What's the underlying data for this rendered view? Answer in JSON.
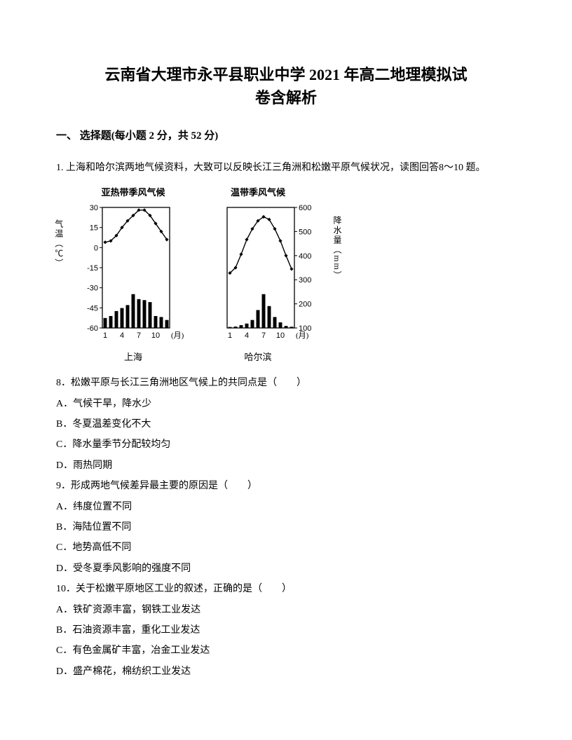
{
  "title_line1": "云南省大理市永平县职业中学 2021 年高二地理模拟试",
  "title_line2": "卷含解析",
  "section1": "一、 选择题(每小题 2 分，共 52 分)",
  "intro": "1. 上海和哈尔滨两地气候资料，大致可以反映长江三角洲和松嫩平原气候状况，读图回答8～10 题。",
  "chart1": {
    "title": "亚热带季风气候",
    "caption": "上海",
    "y_left_label": "气温（℃）",
    "temp_ticks": [
      30,
      15,
      0,
      -15,
      -30,
      -45,
      -60
    ],
    "x_ticks": [
      1,
      4,
      7,
      10
    ],
    "x_unit": "(月)",
    "temp_values": [
      4,
      5,
      9,
      15,
      20,
      24,
      28,
      28,
      24,
      18,
      12,
      6
    ],
    "precip_max": 200,
    "precip_values": [
      50,
      60,
      85,
      100,
      115,
      170,
      145,
      140,
      130,
      60,
      55,
      40
    ],
    "line_color": "#000000",
    "bar_color": "#000000",
    "bg": "#ffffff",
    "axis_color": "#000000"
  },
  "chart2": {
    "title": "温带季风气候",
    "caption": "哈尔滨",
    "y_right_label": "降水量（mm）",
    "precip_ticks": [
      600,
      500,
      400,
      300,
      200,
      100
    ],
    "x_ticks": [
      1,
      4,
      7,
      10
    ],
    "x_unit": "(月)",
    "temp_values": [
      -19,
      -15,
      -5,
      6,
      14,
      20,
      23,
      21,
      14,
      5,
      -6,
      -16
    ],
    "precip_max": 200,
    "precip_values": [
      5,
      7,
      14,
      22,
      40,
      90,
      170,
      110,
      55,
      28,
      10,
      6
    ],
    "line_color": "#000000",
    "bar_color": "#000000",
    "bg": "#ffffff",
    "axis_color": "#000000"
  },
  "q8": {
    "stem": "8．松嫩平原与长江三角洲地区气候上的共同点是（　　）",
    "A": "A．气候干旱，降水少",
    "B": "B．冬夏温差变化不大",
    "C": "C．降水量季节分配较均匀",
    "D": "D．雨热同期"
  },
  "q9": {
    "stem": "9．形成两地气候差异最主要的原因是（　　）",
    "A": "A．纬度位置不同",
    "B": "B．海陆位置不同",
    "C": "C．地势高低不同",
    "D": "D．受冬夏季风影响的强度不同"
  },
  "q10": {
    "stem": "10．关于松嫩平原地区工业的叙述，正确的是（　　）",
    "A": "A．铁矿资源丰富，钢铁工业发达",
    "B": "B．石油资源丰富，重化工业发达",
    "C": "C．有色金属矿丰富，冶金工业发达",
    "D": "D．盛产棉花，棉纺织工业发达"
  }
}
